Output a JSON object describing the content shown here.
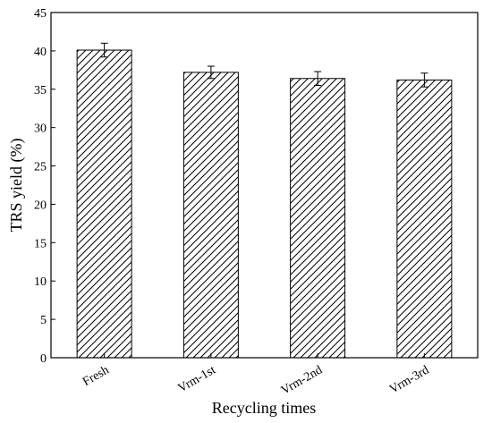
{
  "chart_data": {
    "type": "bar",
    "categories": [
      "Fresh",
      "Vrm-1st",
      "Vrm-2nd",
      "Vrm-3rd"
    ],
    "values": [
      40.1,
      37.2,
      36.4,
      36.2
    ],
    "errors": [
      0.9,
      0.8,
      0.9,
      0.9
    ],
    "title": "",
    "xlabel": "Recycling times",
    "ylabel": "TRS yield (%)",
    "ylim": [
      0,
      45
    ],
    "yticks": [
      0,
      5,
      10,
      15,
      20,
      25,
      30,
      35,
      40,
      45
    ],
    "grid": false,
    "bar_fill": "diagonal-hatch",
    "colors": {
      "bar_fill": "#ffffff",
      "hatch": "#000000",
      "edge": "#000000"
    }
  }
}
